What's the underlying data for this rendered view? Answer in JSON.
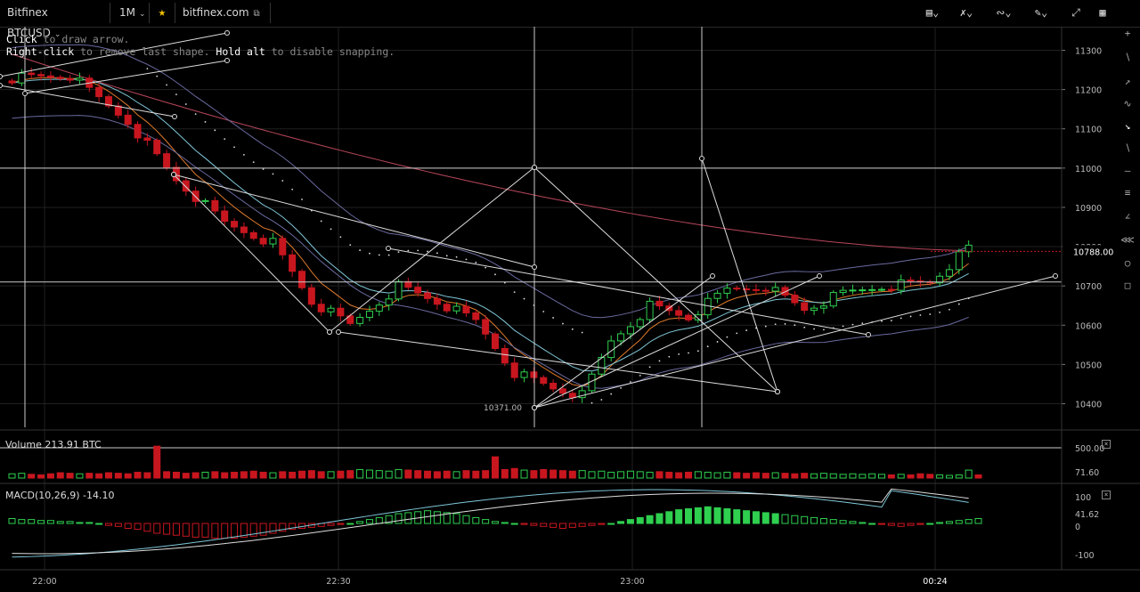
{
  "toolbar": {
    "symbol": "Bitfinex BTCUSD",
    "timeframe": "1M",
    "link": "bitfinex.com"
  },
  "hints": {
    "line1_key": "Click",
    "line1_rest": " to draw arrow.",
    "line2_key": "Right-click",
    "line2_mid": " to remove last shape. ",
    "line2_key2": "Hold alt",
    "line2_rest": " to disable snapping."
  },
  "colors": {
    "up": "#2fcf4f",
    "down": "#c8161f",
    "ema_fast": "#e07a2a",
    "ema_mid": "#7fc7d8",
    "ema_slow": "#b8465a",
    "bands": "#6a6aa0",
    "grid": "#202020"
  },
  "chart_data": {
    "type": "candlestick",
    "price_axis": {
      "ticks": [
        "11300",
        "11200",
        "11100",
        "11000",
        "10900",
        "10800",
        "10700",
        "10600",
        "10500",
        "10400"
      ],
      "min": 10340,
      "max": 11360
    },
    "current_price_label": "10788.00",
    "low_label": "10371.00",
    "time_ticks": [
      "22:00",
      "22:30",
      "23:00",
      "00:24"
    ],
    "volume": {
      "label": "Volume",
      "value": "213.91 BTC",
      "ticks": [
        "500.00",
        "71.60"
      ],
      "values": [
        8,
        9,
        7,
        6,
        8,
        10,
        9,
        8,
        9,
        8,
        10,
        9,
        8,
        11,
        10,
        60,
        12,
        11,
        9,
        10,
        11,
        12,
        10,
        11,
        12,
        13,
        11,
        10,
        12,
        11,
        13,
        14,
        12,
        12,
        13,
        14,
        16,
        15,
        14,
        13,
        16,
        15,
        14,
        13,
        12,
        13,
        12,
        14,
        13,
        14,
        40,
        16,
        18,
        15,
        14,
        16,
        15,
        14,
        13,
        14,
        12,
        13,
        11,
        12,
        13,
        12,
        11,
        12,
        11,
        10,
        11,
        12,
        11,
        10,
        11,
        10,
        9,
        10,
        9,
        10,
        9,
        8,
        9,
        8,
        9,
        8,
        7,
        8,
        7,
        8,
        7,
        6,
        7,
        6,
        8,
        7,
        6,
        5,
        6,
        15,
        6
      ]
    },
    "macd": {
      "label": "MACD(10,26,9)",
      "value": "-14.10",
      "ticks": [
        "100",
        "41.62",
        "0",
        "-100"
      ],
      "hist": [
        5,
        4,
        4,
        3,
        3,
        2,
        2,
        1,
        1,
        0,
        -2,
        -3,
        -5,
        -6,
        -8,
        -10,
        -11,
        -12,
        -13,
        -14,
        -14,
        -15,
        -15,
        -15,
        -14,
        -13,
        -12,
        -10,
        -8,
        -6,
        -5,
        -4,
        -3,
        -2,
        -1,
        0,
        2,
        4,
        6,
        8,
        10,
        11,
        12,
        13,
        12,
        11,
        10,
        8,
        6,
        4,
        2,
        1,
        0,
        -1,
        -2,
        -3,
        -4,
        -5,
        -4,
        -3,
        -2,
        -1,
        0,
        2,
        4,
        6,
        8,
        10,
        12,
        14,
        15,
        16,
        17,
        16,
        15,
        14,
        13,
        12,
        11,
        10,
        9,
        8,
        7,
        6,
        5,
        4,
        3,
        2,
        1,
        0,
        -1,
        -2,
        -3,
        -2,
        -1,
        0,
        1,
        2,
        3,
        4,
        5
      ]
    }
  }
}
